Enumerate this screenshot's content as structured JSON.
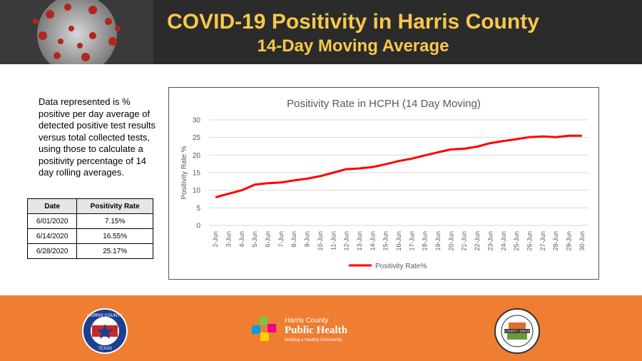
{
  "header": {
    "title": "COVID-19 Positivity in Harris County",
    "subtitle": "14-Day Moving Average"
  },
  "description": "Data represented is % positive per day average of detected positive test results versus total collected tests, using those to calculate a positivity percentage of 14 day rolling averages.",
  "table": {
    "headers": [
      "Date",
      "Positivity Rate"
    ],
    "rows": [
      [
        "6/01/2020",
        "7.15%"
      ],
      [
        "6/14/2020",
        "16.55%"
      ],
      [
        "6/28/2020",
        "25.17%"
      ]
    ]
  },
  "chart_data": {
    "type": "line",
    "title": "Positivity Rate in HCPH (14 Day Moving)",
    "xlabel": "",
    "ylabel": "Positivity Rate %",
    "ylim": [
      0,
      30
    ],
    "yticks": [
      0,
      5,
      10,
      15,
      20,
      25,
      30
    ],
    "grid": true,
    "legend": "bottom",
    "categories": [
      "2-Jun",
      "3-Jun",
      "4-Jun",
      "5-Jun",
      "6-Jun",
      "7-Jun",
      "8-Jun",
      "9-Jun",
      "10-Jun",
      "11-Jun",
      "12-Jun",
      "13-Jun",
      "14-Jun",
      "15-Jun",
      "16-Jun",
      "17-Jun",
      "18-Jun",
      "19-Jun",
      "20-Jun",
      "21-Jun",
      "22-Jun",
      "23-Jun",
      "24-Jun",
      "25-Jun",
      "26-Jun",
      "27-Jun",
      "28-Jun",
      "29-Jun",
      "30-Jun"
    ],
    "series": [
      {
        "name": "Positivity Rate%",
        "color": "#ff0000",
        "values": [
          8.0,
          9.0,
          10.0,
          11.6,
          12.0,
          12.2,
          12.8,
          13.3,
          14.0,
          15.0,
          16.0,
          16.2,
          16.6,
          17.4,
          18.3,
          19.0,
          19.9,
          20.8,
          21.6,
          21.8,
          22.4,
          23.4,
          24.0,
          24.5,
          25.1,
          25.3,
          25.1,
          25.5,
          25.5
        ]
      }
    ]
  },
  "footer": {
    "logos": [
      {
        "name": "harris-county-seal",
        "text": "HARRIS COUNTY",
        "subtext": "TEXAS"
      },
      {
        "name": "public-health-logo",
        "line1": "Harris County",
        "line2": "Public Health",
        "line3": "Building a Healthy Community"
      },
      {
        "name": "county-judge-seal",
        "text": "COUNTY JUDGE"
      }
    ],
    "colors": {
      "footer": "#ef7d32",
      "header": "#2b2b2b",
      "title": "#f7c84a",
      "line": "#ff0000"
    }
  }
}
